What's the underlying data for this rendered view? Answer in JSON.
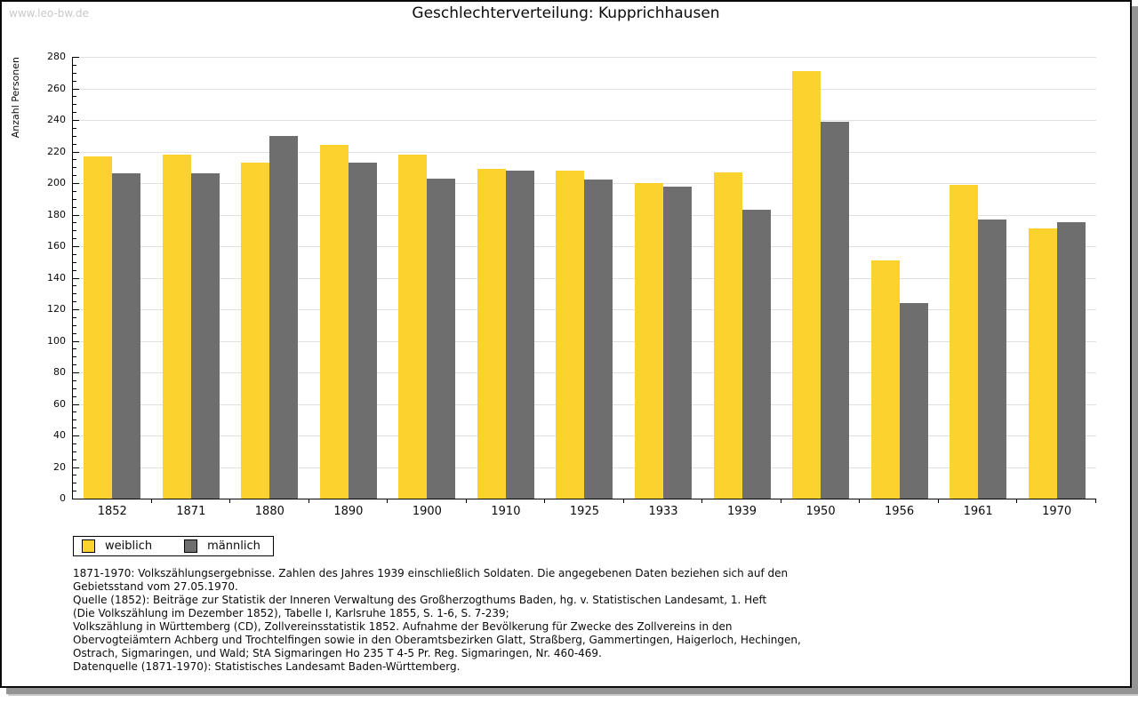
{
  "watermark": "www.leo-bw.de",
  "title": "Geschlechterverteilung: Kupprichhausen",
  "chart_data": {
    "type": "bar",
    "title": "Geschlechterverteilung: Kupprichhausen",
    "ylabel": "Anzahl Personen",
    "xlabel": "",
    "ylim": [
      0,
      280
    ],
    "ytick_major": 20,
    "ytick_minor": 5,
    "grid": true,
    "legend_position": "bottom-left",
    "categories": [
      "1852",
      "1871",
      "1880",
      "1890",
      "1900",
      "1910",
      "1925",
      "1933",
      "1939",
      "1950",
      "1956",
      "1961",
      "1970"
    ],
    "series": [
      {
        "name": "weiblich",
        "color": "#fcd32e",
        "values": [
          217,
          218,
          213,
          224,
          218,
          209,
          208,
          200,
          207,
          271,
          151,
          199,
          171
        ]
      },
      {
        "name": "männlich",
        "color": "#6e6e6e",
        "values": [
          206,
          206,
          230,
          213,
          203,
          208,
          202,
          198,
          183,
          239,
          124,
          177,
          175
        ]
      }
    ]
  },
  "legend": {
    "items": [
      {
        "label": "weiblich",
        "color": "#fcd32e"
      },
      {
        "label": "männlich",
        "color": "#6e6e6e"
      }
    ]
  },
  "footnotes": {
    "lines": [
      "1871-1970: Volkszählungsergebnisse. Zahlen des Jahres 1939 einschließlich Soldaten. Die angegebenen Daten beziehen sich auf den",
      "Gebietsstand vom 27.05.1970.",
      "Quelle (1852): Beiträge zur Statistik der Inneren Verwaltung des Großherzogthums Baden, hg. v. Statistischen Landesamt, 1. Heft",
      "(Die Volkszählung im Dezember 1852), Tabelle I, Karlsruhe 1855, S. 1-6, S. 7-239;",
      "Volkszählung in Württemberg (CD), Zollvereinsstatistik 1852. Aufnahme der Bevölkerung für Zwecke des Zollvereins in den",
      "Obervogteiämtern Achberg und Trochtelfingen sowie in den Oberamtsbezirken Glatt, Straßberg, Gammertingen, Haigerloch, Hechingen,",
      "Ostrach, Sigmaringen, und Wald; StA Sigmaringen Ho 235 T 4-5 Pr. Reg. Sigmaringen, Nr. 460-469."
    ],
    "datasource": "Datenquelle (1871-1970): Statistisches Landesamt Baden-Württemberg."
  },
  "colors": {
    "gridline": "#e0e0e0",
    "axis": "#000000",
    "watermark": "#c9c9c9",
    "frame_shadow": "#949494"
  }
}
